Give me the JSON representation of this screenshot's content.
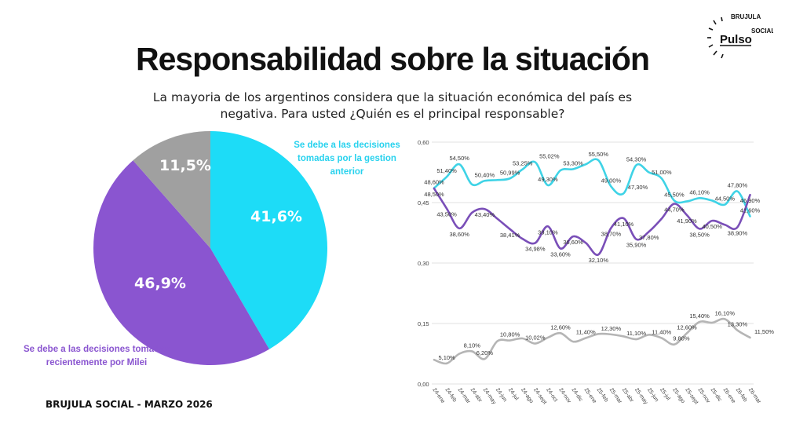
{
  "title": "Responsabilidad sobre la situación",
  "subtitle": "La mayoria de los argentinos considera que la situación económica del país es negativa. Para usted ¿Quién es el principal responsable?",
  "footer": "BRUJULA SOCIAL - MARZO 2026",
  "logo": {
    "brand": "Pulso",
    "ring_text": "BRUJULA SOCIAL"
  },
  "legend": {
    "cyan": "Se debe a las decisiones tomadas por la gestion anterior",
    "purple": "Se debe a las decisiones tomadas recientemente por Milei"
  },
  "chart_data": [
    {
      "type": "pie",
      "slices": [
        {
          "label": "41,6%",
          "value": 41.6,
          "color": "#1ddcf7",
          "legend": "Se debe a las decisiones tomadas por la gestion anterior"
        },
        {
          "label": "46,9%",
          "value": 46.9,
          "color": "#8a55d0",
          "legend": "Se debe a las decisiones tomadas recientemente por Milei"
        },
        {
          "label": "11,5%",
          "value": 11.5,
          "color": "#a0a0a0"
        }
      ]
    },
    {
      "type": "line",
      "ylim": [
        0,
        0.6
      ],
      "yticks": [
        "0,00",
        "0,15",
        "0,30",
        "0,45",
        "0,60"
      ],
      "grid": true,
      "categories": [
        "24-ene",
        "24-feb",
        "24-mar",
        "24-abr",
        "24-may",
        "24-jun",
        "24-jul",
        "24-ago",
        "24-sept",
        "24-oct",
        "24-nov",
        "24-dic",
        "25-ene",
        "25-feb",
        "25-mar",
        "25-abr",
        "25-may",
        "25-jun",
        "25-jul",
        "25-ago",
        "25-sept",
        "25-nov",
        "25-dic",
        "26-ene",
        "26-feb",
        "26-mar"
      ],
      "series": [
        {
          "color": "#3fd3e6",
          "values": [
            0.486,
            0.514,
            0.545,
            0.495,
            0.504,
            0.506,
            0.5099,
            0.5325,
            0.5502,
            0.493,
            0.53,
            0.533,
            0.545,
            0.555,
            0.49,
            0.473,
            0.543,
            0.525,
            0.51,
            0.455,
            0.453,
            0.461,
            0.455,
            0.445,
            0.478,
            0.416
          ],
          "labels": [
            "48,60%",
            "51,40%",
            "54,50%",
            null,
            "50,40%",
            null,
            "50,99%",
            "53,25%",
            "55,02%",
            "49,30%",
            null,
            "53,30%",
            null,
            "55,50%",
            "49,00%",
            "47,30%",
            "54,30%",
            null,
            "51,00%",
            "45,50%",
            null,
            "46,10%",
            null,
            "44,50%",
            "47,80%",
            "41,60%"
          ]
        },
        {
          "color": "#7a4fb8",
          "values": [
            0.485,
            0.435,
            0.386,
            0.425,
            0.434,
            0.41,
            0.3841,
            0.36,
            0.3498,
            0.391,
            0.336,
            0.366,
            0.35,
            0.321,
            0.387,
            0.411,
            0.359,
            0.378,
            0.41,
            0.447,
            0.419,
            0.385,
            0.405,
            0.395,
            0.389,
            0.469
          ],
          "labels": [
            "48,50%",
            "43,50%",
            "38,60%",
            null,
            "43,40%",
            null,
            "38,41%",
            null,
            "34,98%",
            "39,10%",
            "33,60%",
            "36,60%",
            null,
            "32,10%",
            "38,70%",
            "41,10%",
            "35,90%",
            "37,80%",
            null,
            "44,70%",
            "41,90%",
            "38,50%",
            "40,50%",
            null,
            "38,90%",
            "46,90%"
          ]
        },
        {
          "color": "#b5b5b5",
          "values": [
            0.06,
            0.051,
            0.075,
            0.081,
            0.062,
            0.106,
            0.108,
            0.113,
            0.1002,
            0.115,
            0.126,
            0.105,
            0.114,
            0.124,
            0.123,
            0.118,
            0.111,
            0.122,
            0.114,
            0.098,
            0.126,
            0.154,
            0.152,
            0.161,
            0.133,
            0.115
          ],
          "labels": [
            null,
            "5,10%",
            null,
            "8,10%",
            "6,20%",
            null,
            "10,80%",
            null,
            "10,02%",
            null,
            "12,60%",
            null,
            "11,40%",
            null,
            "12,30%",
            null,
            "11,10%",
            null,
            "11,40%",
            "9,80%",
            "12,60%",
            "15,40%",
            null,
            "16,10%",
            "13,30%",
            "11,50%"
          ]
        }
      ]
    }
  ]
}
